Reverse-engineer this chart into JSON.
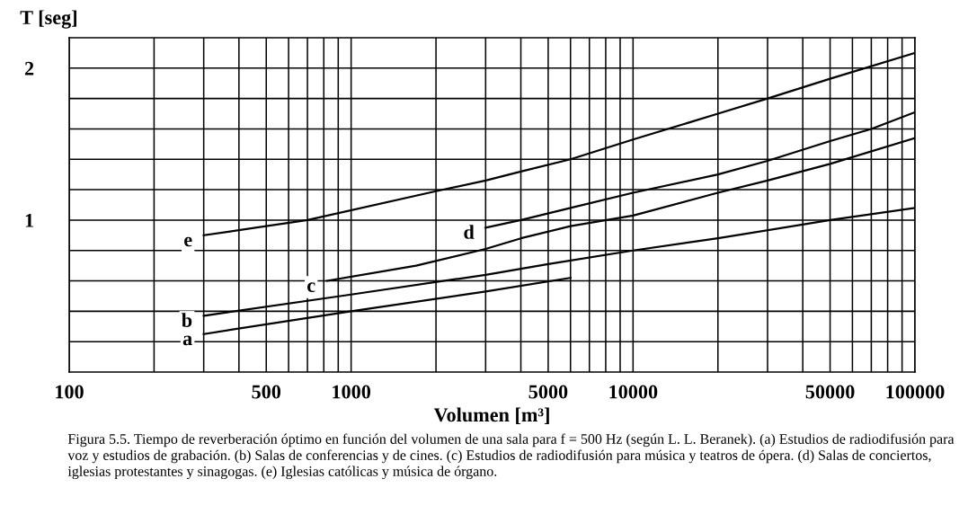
{
  "chart_data": {
    "type": "line",
    "xlabel": "Volumen [m³]",
    "ylabel": "T [seg]",
    "log": "x",
    "grid": true,
    "xlim": [
      100,
      100000
    ],
    "ylim": [
      0,
      2.2
    ],
    "xticks": [
      100,
      {
        "value": 200,
        "label": null
      },
      {
        "value": 300,
        "label": null
      },
      {
        "value": 400,
        "label": null
      },
      500,
      {
        "value": 600,
        "label": null
      },
      {
        "value": 700,
        "label": null
      },
      {
        "value": 800,
        "label": null
      },
      {
        "value": 900,
        "label": null
      },
      1000,
      {
        "value": 2000,
        "label": null
      },
      {
        "value": 3000,
        "label": null
      },
      {
        "value": 4000,
        "label": null
      },
      5000,
      {
        "value": 6000,
        "label": null
      },
      {
        "value": 7000,
        "label": null
      },
      {
        "value": 8000,
        "label": null
      },
      {
        "value": 9000,
        "label": null
      },
      10000,
      {
        "value": 20000,
        "label": null
      },
      {
        "value": 30000,
        "label": null
      },
      {
        "value": 40000,
        "label": null
      },
      50000,
      {
        "value": 60000,
        "label": null
      },
      {
        "value": 70000,
        "label": null
      },
      {
        "value": 80000,
        "label": null
      },
      {
        "value": 90000,
        "label": null
      },
      100000
    ],
    "yticks": [
      {
        "value": 0.2,
        "label": null
      },
      {
        "value": 0.4,
        "label": null
      },
      {
        "value": 0.6,
        "label": null
      },
      {
        "value": 0.8,
        "label": null
      },
      1,
      {
        "value": 1.2,
        "label": null
      },
      {
        "value": 1.4,
        "label": null
      },
      {
        "value": 1.6,
        "label": null
      },
      {
        "value": 1.8,
        "label": null
      },
      2
    ],
    "series": [
      {
        "name": "a",
        "color": "#000000",
        "x": [
          300,
          1000,
          3000,
          6000
        ],
        "values": [
          0.25,
          0.4,
          0.53,
          0.62
        ]
      },
      {
        "name": "b",
        "color": "#000000",
        "x": [
          300,
          1000,
          3000,
          5000,
          10000,
          20000,
          50000,
          100000
        ],
        "values": [
          0.37,
          0.51,
          0.64,
          0.71,
          0.8,
          0.88,
          1.0,
          1.08
        ]
      },
      {
        "name": "c",
        "color": "#000000",
        "x": [
          820,
          1700,
          3000,
          4000,
          6000,
          10000,
          20000,
          30000,
          50000,
          100000
        ],
        "values": [
          0.6,
          0.7,
          0.81,
          0.88,
          0.96,
          1.03,
          1.18,
          1.26,
          1.37,
          1.54
        ]
      },
      {
        "name": "d",
        "color": "#000000",
        "x": [
          3000,
          4000,
          6000,
          10000,
          20000,
          30000,
          50000,
          70000,
          100000
        ],
        "values": [
          0.95,
          1.0,
          1.08,
          1.18,
          1.3,
          1.39,
          1.52,
          1.6,
          1.71
        ]
      },
      {
        "name": "e",
        "color": "#000000",
        "x": [
          300,
          700,
          2000,
          3000,
          4000,
          6000,
          10000,
          20000,
          30000,
          50000,
          100000
        ],
        "values": [
          0.9,
          1.0,
          1.19,
          1.26,
          1.32,
          1.4,
          1.53,
          1.7,
          1.8,
          1.93,
          2.1
        ]
      }
    ],
    "annotations": [
      "Figura 5.5. Tiempo de reverberación óptimo en función del volumen de una sala para f = 500 Hz (según L. L. Beranek). (a) Estudios de radiodifusión para voz y estudios de grabación. (b) Salas de conferencias y de cines. (c) Estudios de radiodifusión para música y teatros de ópera. (d) Salas de conciertos, iglesias protestantes y sinagogas. (e) Iglesias católicas y música de órgano."
    ]
  }
}
